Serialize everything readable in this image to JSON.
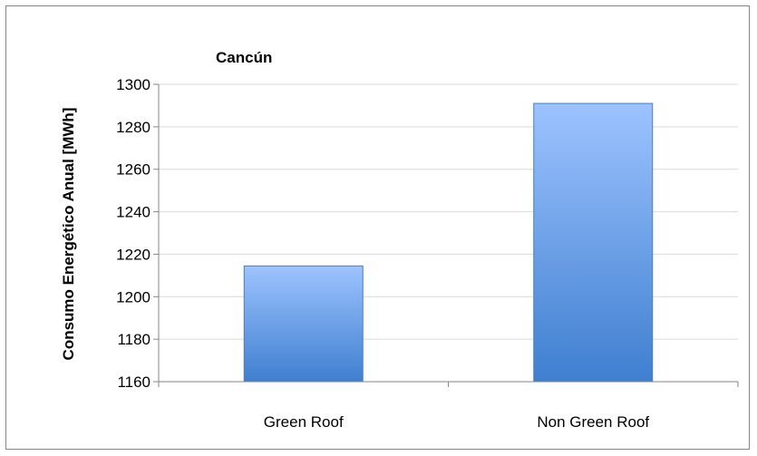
{
  "chart_data": {
    "type": "bar",
    "title": "Cancún",
    "xlabel": "",
    "ylabel": "Consumo Energético Anual [MWh]",
    "categories": [
      "Green Roof",
      "Non Green Roof"
    ],
    "values": [
      1214.5,
      1291
    ],
    "ylim": [
      1160,
      1300
    ],
    "yticks": [
      1160,
      1180,
      1200,
      1220,
      1240,
      1260,
      1280,
      1300
    ],
    "grid": true,
    "legend": "none",
    "colors": {
      "bar_top": "#9DC3FF",
      "bar_bottom": "#3F7FD0",
      "bar_stroke": "#4A7EBB",
      "grid": "#D9D9D9",
      "axis": "#868686"
    }
  }
}
